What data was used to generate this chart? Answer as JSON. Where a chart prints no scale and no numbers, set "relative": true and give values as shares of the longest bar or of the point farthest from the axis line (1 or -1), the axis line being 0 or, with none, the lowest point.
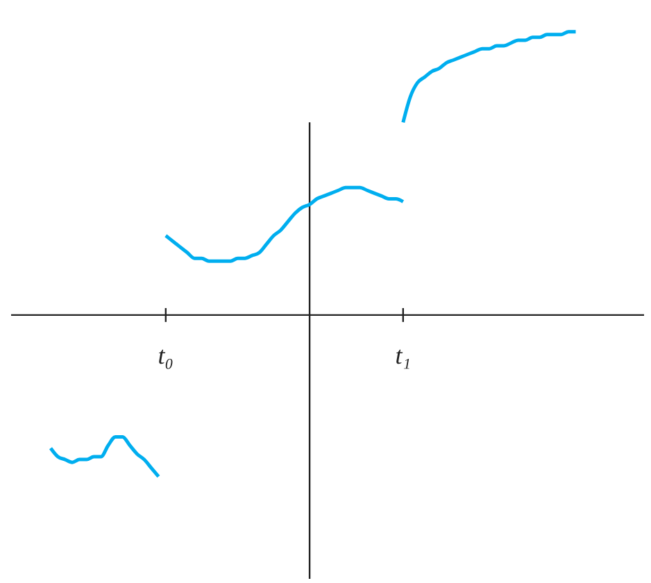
{
  "chart_data": {
    "type": "line",
    "relative": true,
    "marker": "none",
    "line_style": "solid",
    "categories": [
      null,
      null,
      null,
      null,
      null,
      null,
      null,
      null,
      null,
      null,
      null,
      null,
      null,
      null,
      null,
      null,
      null,
      null,
      null,
      null,
      null,
      "t₀",
      null,
      null,
      null,
      null,
      null,
      null,
      null,
      null,
      null,
      null,
      null,
      null,
      null,
      null,
      null,
      null,
      null,
      null,
      null,
      null,
      null,
      null,
      null,
      null,
      null,
      null,
      null,
      null,
      null,
      null,
      null,
      null,
      "t₁",
      null,
      null,
      null,
      null,
      null,
      null,
      null,
      null,
      null,
      null,
      null,
      null,
      null,
      null,
      null,
      null,
      null,
      null,
      null,
      null,
      null,
      null,
      null,
      null,
      null,
      null,
      null,
      null,
      null,
      null,
      null,
      null,
      null
    ],
    "series": [
      {
        "color": "#00aeef",
        "values": [
          null,
          null,
          null,
          null,
          null,
          -0.47,
          -0.5,
          -0.51,
          -0.52,
          -0.51,
          -0.51,
          -0.5,
          -0.5,
          -0.46,
          -0.43,
          -0.43,
          -0.46,
          -0.49,
          -0.51,
          -0.54,
          -0.57,
          null,
          null,
          null,
          null,
          null,
          null,
          null,
          null,
          null,
          null,
          null,
          null,
          null,
          null,
          null,
          null,
          null,
          null,
          null,
          null,
          null,
          null,
          null,
          null,
          null,
          null,
          null,
          null,
          null,
          null,
          null,
          null,
          null,
          null,
          null,
          null,
          null,
          null,
          null,
          null,
          null,
          null,
          null,
          null,
          null,
          null,
          null,
          null,
          null,
          null,
          null,
          null,
          null,
          null,
          null,
          null,
          null,
          null,
          null,
          null,
          null,
          null,
          null,
          null,
          null,
          null,
          null
        ]
      },
      {
        "color": "#00aeef",
        "values": [
          null,
          null,
          null,
          null,
          null,
          null,
          null,
          null,
          null,
          null,
          null,
          null,
          null,
          null,
          null,
          null,
          null,
          null,
          null,
          null,
          null,
          0.28,
          0.26,
          0.24,
          0.22,
          0.2,
          0.2,
          0.19,
          0.19,
          0.19,
          0.19,
          0.2,
          0.2,
          0.21,
          0.22,
          0.25,
          0.28,
          0.3,
          0.33,
          0.36,
          0.38,
          0.39,
          0.41,
          0.42,
          0.43,
          0.44,
          0.45,
          0.45,
          0.45,
          0.44,
          0.43,
          0.42,
          0.41,
          0.41,
          0.4,
          null,
          null,
          null,
          null,
          null,
          null,
          null,
          null,
          null,
          null,
          null,
          null,
          null,
          null,
          null,
          null,
          null,
          null,
          null,
          null,
          null,
          null,
          null,
          null,
          null,
          null,
          null,
          null,
          null,
          null,
          null,
          null,
          null
        ]
      },
      {
        "color": "#00aeef",
        "values": [
          null,
          null,
          null,
          null,
          null,
          null,
          null,
          null,
          null,
          null,
          null,
          null,
          null,
          null,
          null,
          null,
          null,
          null,
          null,
          null,
          null,
          null,
          null,
          null,
          null,
          null,
          null,
          null,
          null,
          null,
          null,
          null,
          null,
          null,
          null,
          null,
          null,
          null,
          null,
          null,
          null,
          null,
          null,
          null,
          null,
          null,
          null,
          null,
          null,
          null,
          null,
          null,
          null,
          null,
          0.68,
          0.77,
          0.82,
          0.84,
          0.86,
          0.87,
          0.89,
          0.9,
          0.91,
          0.92,
          0.93,
          0.94,
          0.94,
          0.95,
          0.95,
          0.96,
          0.97,
          0.97,
          0.98,
          0.98,
          0.99,
          0.99,
          0.99,
          1.0,
          1.0,
          null,
          null,
          null,
          null,
          null,
          null,
          null,
          null,
          null
        ]
      }
    ]
  }
}
